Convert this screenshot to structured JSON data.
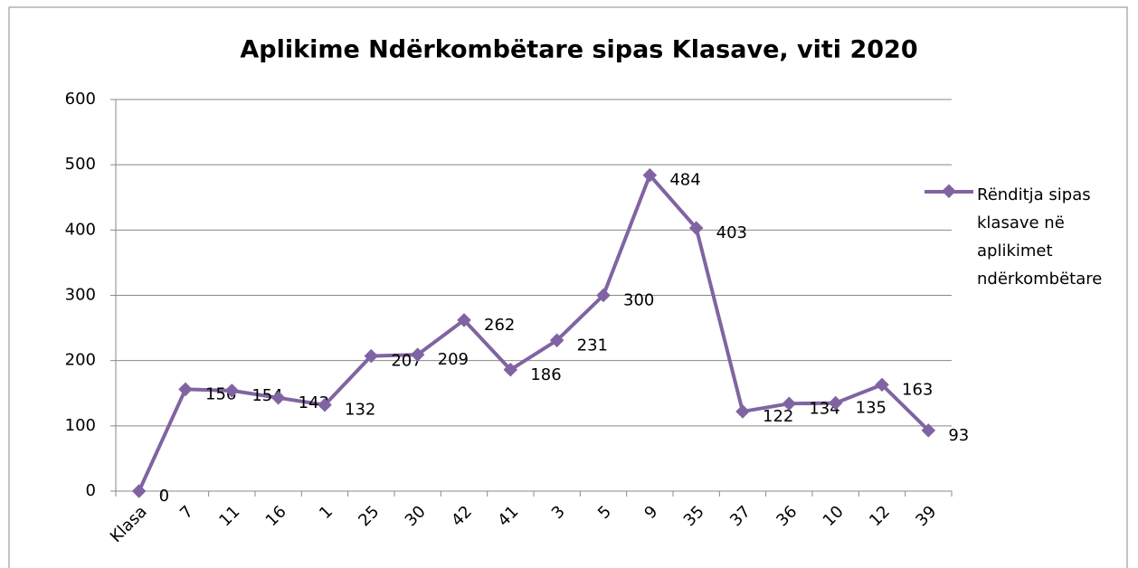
{
  "chart_data": {
    "type": "line",
    "title": "Aplikime Ndërkombëtare sipas Klasave, viti 2020",
    "categories": [
      "Klasa",
      "7",
      "11",
      "16",
      "1",
      "25",
      "30",
      "42",
      "41",
      "3",
      "5",
      "9",
      "35",
      "37",
      "36",
      "10",
      "12",
      "39"
    ],
    "series": [
      {
        "name": "Rënditja sipas klasave në aplikimet ndërkombëtare",
        "color": "#8064a2",
        "values": [
          0,
          156,
          154,
          143,
          132,
          207,
          209,
          262,
          186,
          231,
          300,
          484,
          403,
          122,
          134,
          135,
          163,
          93
        ]
      }
    ],
    "ylim": [
      0,
      600
    ],
    "yticks": [
      0,
      100,
      200,
      300,
      400,
      500,
      600
    ],
    "grid": true,
    "legend": "right"
  }
}
